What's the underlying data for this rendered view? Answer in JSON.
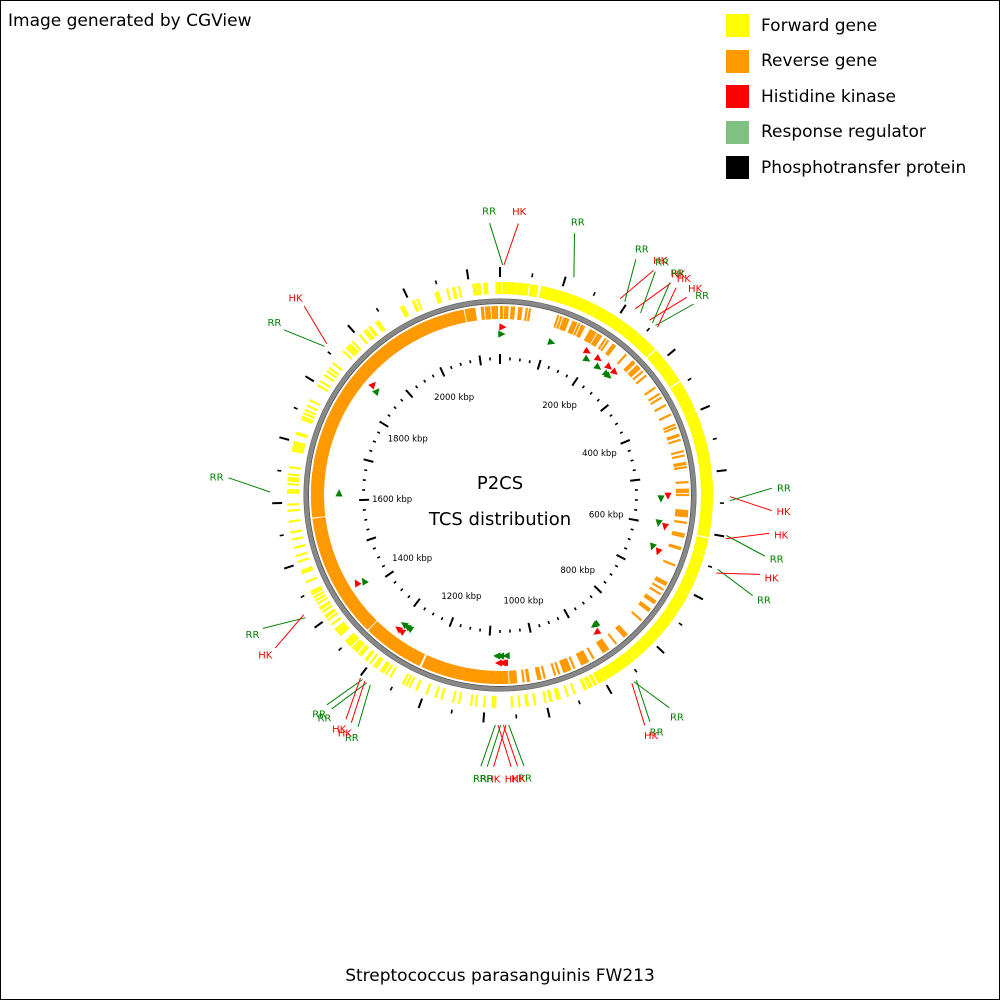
{
  "credit": "Image generated by CGView",
  "title_line1": "P2CS",
  "title_line2": "TCS distribution",
  "organism": "Streptococcus parasanguinis FW213",
  "legend": [
    {
      "label": "Forward gene",
      "color": "#ffff00"
    },
    {
      "label": "Reverse gene",
      "color": "#ff9900"
    },
    {
      "label": "Histidine kinase",
      "color": "#ff0000"
    },
    {
      "label": "Response regulator",
      "color": "#80c080"
    },
    {
      "label": "Phosphotransfer protein",
      "color": "#000000"
    }
  ],
  "genome_kbp": 2150,
  "ruler_labels": [
    "200 kbp",
    "400 kbp",
    "600 kbp",
    "800 kbp",
    "1000 kbp",
    "1200 kbp",
    "1400 kbp",
    "1600 kbp",
    "1800 kbp",
    "2000 kbp"
  ],
  "ruler_values_kbp": [
    200,
    400,
    600,
    800,
    1000,
    1200,
    1400,
    1600,
    1800,
    2000
  ],
  "colors": {
    "hk": "#ff0000",
    "rr": "#008000",
    "hk_line": "#ff0000",
    "rr_line": "#008000",
    "backbone": "#808080"
  },
  "features": [
    {
      "type": "RR",
      "label": "RR",
      "pos_kbp": 4
    },
    {
      "type": "HK",
      "label": "HK",
      "pos_kbp": 6
    },
    {
      "type": "RR",
      "label": "RR",
      "pos_kbp": 112
    },
    {
      "type": "HK",
      "label": "HK",
      "pos_kbp": 188
    },
    {
      "type": "RR",
      "label": "RR",
      "pos_kbp": 196
    },
    {
      "type": "HK",
      "label": "HK",
      "pos_kbp": 215
    },
    {
      "type": "RR",
      "label": "RR",
      "pos_kbp": 225
    },
    {
      "type": "HK",
      "label": "HK",
      "pos_kbp": 242
    },
    {
      "type": "RR",
      "label": "RR",
      "pos_kbp": 248
    },
    {
      "type": "RR",
      "label": "RR",
      "pos_kbp": 254
    },
    {
      "type": "HK",
      "label": "HK",
      "pos_kbp": 258
    },
    {
      "type": "HK",
      "label": "HK",
      "pos_kbp": 540
    },
    {
      "type": "RR",
      "label": "RR",
      "pos_kbp": 546
    },
    {
      "type": "RR",
      "label": "RR",
      "pos_kbp": 598
    },
    {
      "type": "HK",
      "label": "HK",
      "pos_kbp": 603
    },
    {
      "type": "RR",
      "label": "RR",
      "pos_kbp": 650
    },
    {
      "type": "HK",
      "label": "HK",
      "pos_kbp": 656
    },
    {
      "type": "RR",
      "label": "RR",
      "pos_kbp": 858
    },
    {
      "type": "RR",
      "label": "RR",
      "pos_kbp": 862
    },
    {
      "type": "HK",
      "label": "HK",
      "pos_kbp": 866
    },
    {
      "type": "RR",
      "label": "RR",
      "pos_kbp": 1062
    },
    {
      "type": "HK",
      "label": "HK",
      "pos_kbp": 1066
    },
    {
      "type": "HK",
      "label": "HK",
      "pos_kbp": 1070
    },
    {
      "type": "RR",
      "label": "RR",
      "pos_kbp": 1074
    },
    {
      "type": "HK",
      "label": "HK",
      "pos_kbp": 1078
    },
    {
      "type": "RR",
      "label": "RR",
      "pos_kbp": 1082
    },
    {
      "type": "RR",
      "label": "RR",
      "pos_kbp": 1280
    },
    {
      "type": "RR",
      "label": "RR",
      "pos_kbp": 1286
    },
    {
      "type": "HK",
      "label": "HK",
      "pos_kbp": 1290
    },
    {
      "type": "RR",
      "label": "RR",
      "pos_kbp": 1294
    },
    {
      "type": "HK",
      "label": "HK",
      "pos_kbp": 1298
    },
    {
      "type": "RR",
      "label": "RR",
      "pos_kbp": 1420
    },
    {
      "type": "HK",
      "label": "HK",
      "pos_kbp": 1425
    },
    {
      "type": "RR",
      "label": "RR",
      "pos_kbp": 1617
    },
    {
      "type": "RR",
      "label": "RR",
      "pos_kbp": 1853
    },
    {
      "type": "HK",
      "label": "HK",
      "pos_kbp": 1858
    }
  ]
}
